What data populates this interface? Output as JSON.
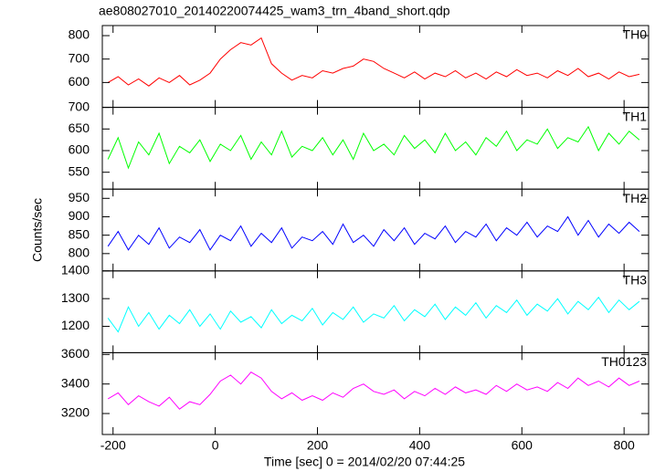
{
  "chart_data": {
    "type": "line",
    "title": "ae808027010_20140220074425_wam3_trn_4band_short.qdp",
    "xlabel": "Time [sec] 0 = 2014/02/20 07:44:25",
    "ylabel": "Counts/sec",
    "xlim": [
      -221,
      848
    ],
    "xticks": [
      -200,
      0,
      200,
      400,
      600,
      800
    ],
    "x": [
      -210,
      -190,
      -170,
      -150,
      -130,
      -110,
      -90,
      -70,
      -50,
      -30,
      -10,
      10,
      30,
      50,
      70,
      90,
      110,
      130,
      150,
      170,
      190,
      210,
      230,
      250,
      270,
      290,
      310,
      330,
      350,
      370,
      390,
      410,
      430,
      450,
      470,
      490,
      510,
      530,
      550,
      570,
      590,
      610,
      630,
      650,
      670,
      690,
      710,
      730,
      750,
      770,
      790,
      810,
      830
    ],
    "series": [
      {
        "name": "TH0",
        "color": "#ff0000",
        "ylim": [
          494,
          843
        ],
        "yticks": [
          600,
          700,
          800
        ],
        "values": [
          600,
          625,
          590,
          615,
          585,
          620,
          600,
          630,
          590,
          610,
          640,
          700,
          740,
          770,
          760,
          790,
          680,
          640,
          610,
          630,
          620,
          650,
          640,
          660,
          670,
          700,
          690,
          660,
          640,
          620,
          645,
          615,
          640,
          625,
          650,
          620,
          640,
          615,
          645,
          625,
          655,
          630,
          640,
          620,
          650,
          630,
          660,
          625,
          640,
          615,
          645,
          625,
          635
        ]
      },
      {
        "name": "TH1",
        "color": "#00ff00",
        "ylim": [
          511,
          700
        ],
        "yticks": [
          550,
          600,
          650,
          700
        ],
        "values": [
          580,
          630,
          560,
          620,
          590,
          640,
          570,
          610,
          595,
          625,
          575,
          615,
          600,
          635,
          580,
          620,
          590,
          645,
          585,
          610,
          600,
          630,
          590,
          625,
          580,
          640,
          600,
          615,
          590,
          635,
          605,
          625,
          595,
          640,
          600,
          620,
          590,
          630,
          610,
          645,
          600,
          625,
          615,
          650,
          605,
          630,
          620,
          655,
          600,
          640,
          615,
          645,
          625
        ]
      },
      {
        "name": "TH2",
        "color": "#0000ff",
        "ylim": [
          753,
          975
        ],
        "yticks": [
          800,
          850,
          900,
          950
        ],
        "values": [
          820,
          860,
          810,
          850,
          825,
          870,
          815,
          845,
          830,
          865,
          810,
          850,
          835,
          875,
          820,
          855,
          830,
          870,
          815,
          845,
          835,
          860,
          825,
          880,
          830,
          850,
          820,
          865,
          835,
          870,
          825,
          855,
          840,
          875,
          830,
          860,
          845,
          880,
          835,
          870,
          850,
          885,
          845,
          875,
          860,
          900,
          850,
          890,
          845,
          880,
          855,
          885,
          860
        ]
      },
      {
        "name": "TH3",
        "color": "#00ffff",
        "ylim": [
          1105,
          1400
        ],
        "yticks": [
          1200,
          1300,
          1400
        ],
        "values": [
          1230,
          1180,
          1270,
          1200,
          1250,
          1190,
          1240,
          1210,
          1260,
          1200,
          1245,
          1190,
          1255,
          1215,
          1235,
          1195,
          1260,
          1210,
          1240,
          1220,
          1265,
          1205,
          1250,
          1225,
          1270,
          1215,
          1245,
          1230,
          1275,
          1220,
          1260,
          1235,
          1280,
          1225,
          1270,
          1240,
          1285,
          1230,
          1275,
          1250,
          1295,
          1240,
          1280,
          1255,
          1300,
          1245,
          1290,
          1260,
          1305,
          1250,
          1295,
          1260,
          1290
        ]
      },
      {
        "name": "TH0123",
        "color": "#ff00ff",
        "ylim": [
          3058,
          3612
        ],
        "yticks": [
          3200,
          3400,
          3600
        ],
        "values": [
          3300,
          3340,
          3260,
          3320,
          3280,
          3250,
          3310,
          3230,
          3280,
          3260,
          3330,
          3420,
          3460,
          3400,
          3480,
          3440,
          3350,
          3300,
          3340,
          3290,
          3320,
          3290,
          3340,
          3310,
          3370,
          3400,
          3350,
          3330,
          3360,
          3300,
          3350,
          3320,
          3370,
          3330,
          3380,
          3340,
          3360,
          3330,
          3390,
          3350,
          3400,
          3360,
          3380,
          3350,
          3410,
          3370,
          3440,
          3390,
          3420,
          3380,
          3440,
          3390,
          3420
        ]
      }
    ]
  }
}
